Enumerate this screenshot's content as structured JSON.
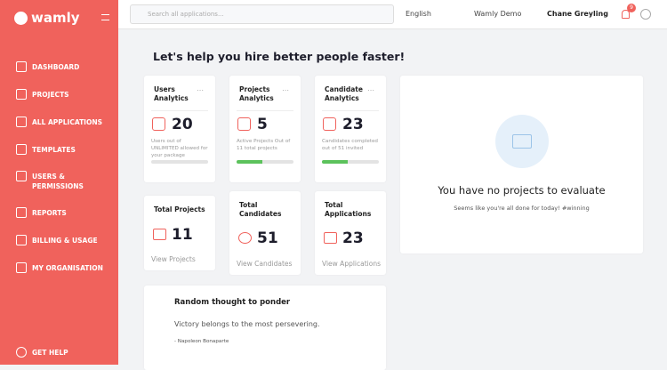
{
  "sidebar": {
    "brand": "wamly",
    "menu": [
      "DASHBOARD",
      "PROJECTS",
      "ALL APPLICATIONS",
      "TEMPLATES",
      "USERS & PERMISSIONS",
      "REPORTS",
      "BILLING & USAGE",
      "MY ORGANISATION"
    ],
    "help": "GET HELP"
  },
  "topbar": {
    "search_placeholder": "Search all applications...",
    "language": "English",
    "account": "Wamly Demo",
    "user": "Chane Greyling",
    "notifications": 9
  },
  "main": {
    "heading": "Let's help you hire better people faster!",
    "analytics": [
      {
        "title": "Users Analytics",
        "value": 20,
        "caption": "Users out of UNLIMITED allowed for your package"
      },
      {
        "title": "Projects Analytics",
        "value": 5,
        "caption": "Active Projects Out of 11 total projects"
      },
      {
        "title": "Candidate Analytics",
        "value": 23,
        "caption": "Candidates completed out of 51 invited"
      }
    ],
    "totals": [
      {
        "title": "Total Projects",
        "value": 11,
        "link": "View Projects"
      },
      {
        "title": "Total Candidates",
        "value": 51,
        "link": "View Candidates"
      },
      {
        "title": "Total Applications",
        "value": 23,
        "link": "View Applications"
      }
    ],
    "empty_state": {
      "title": "You have no projects to evaluate",
      "subtitle": "Seems like you're all done for today! #winning"
    },
    "thought": {
      "title": "Random thought to ponder",
      "quote": "Victory belongs to the most persevering.",
      "author": "- Napoleon Bonaparte"
    }
  }
}
